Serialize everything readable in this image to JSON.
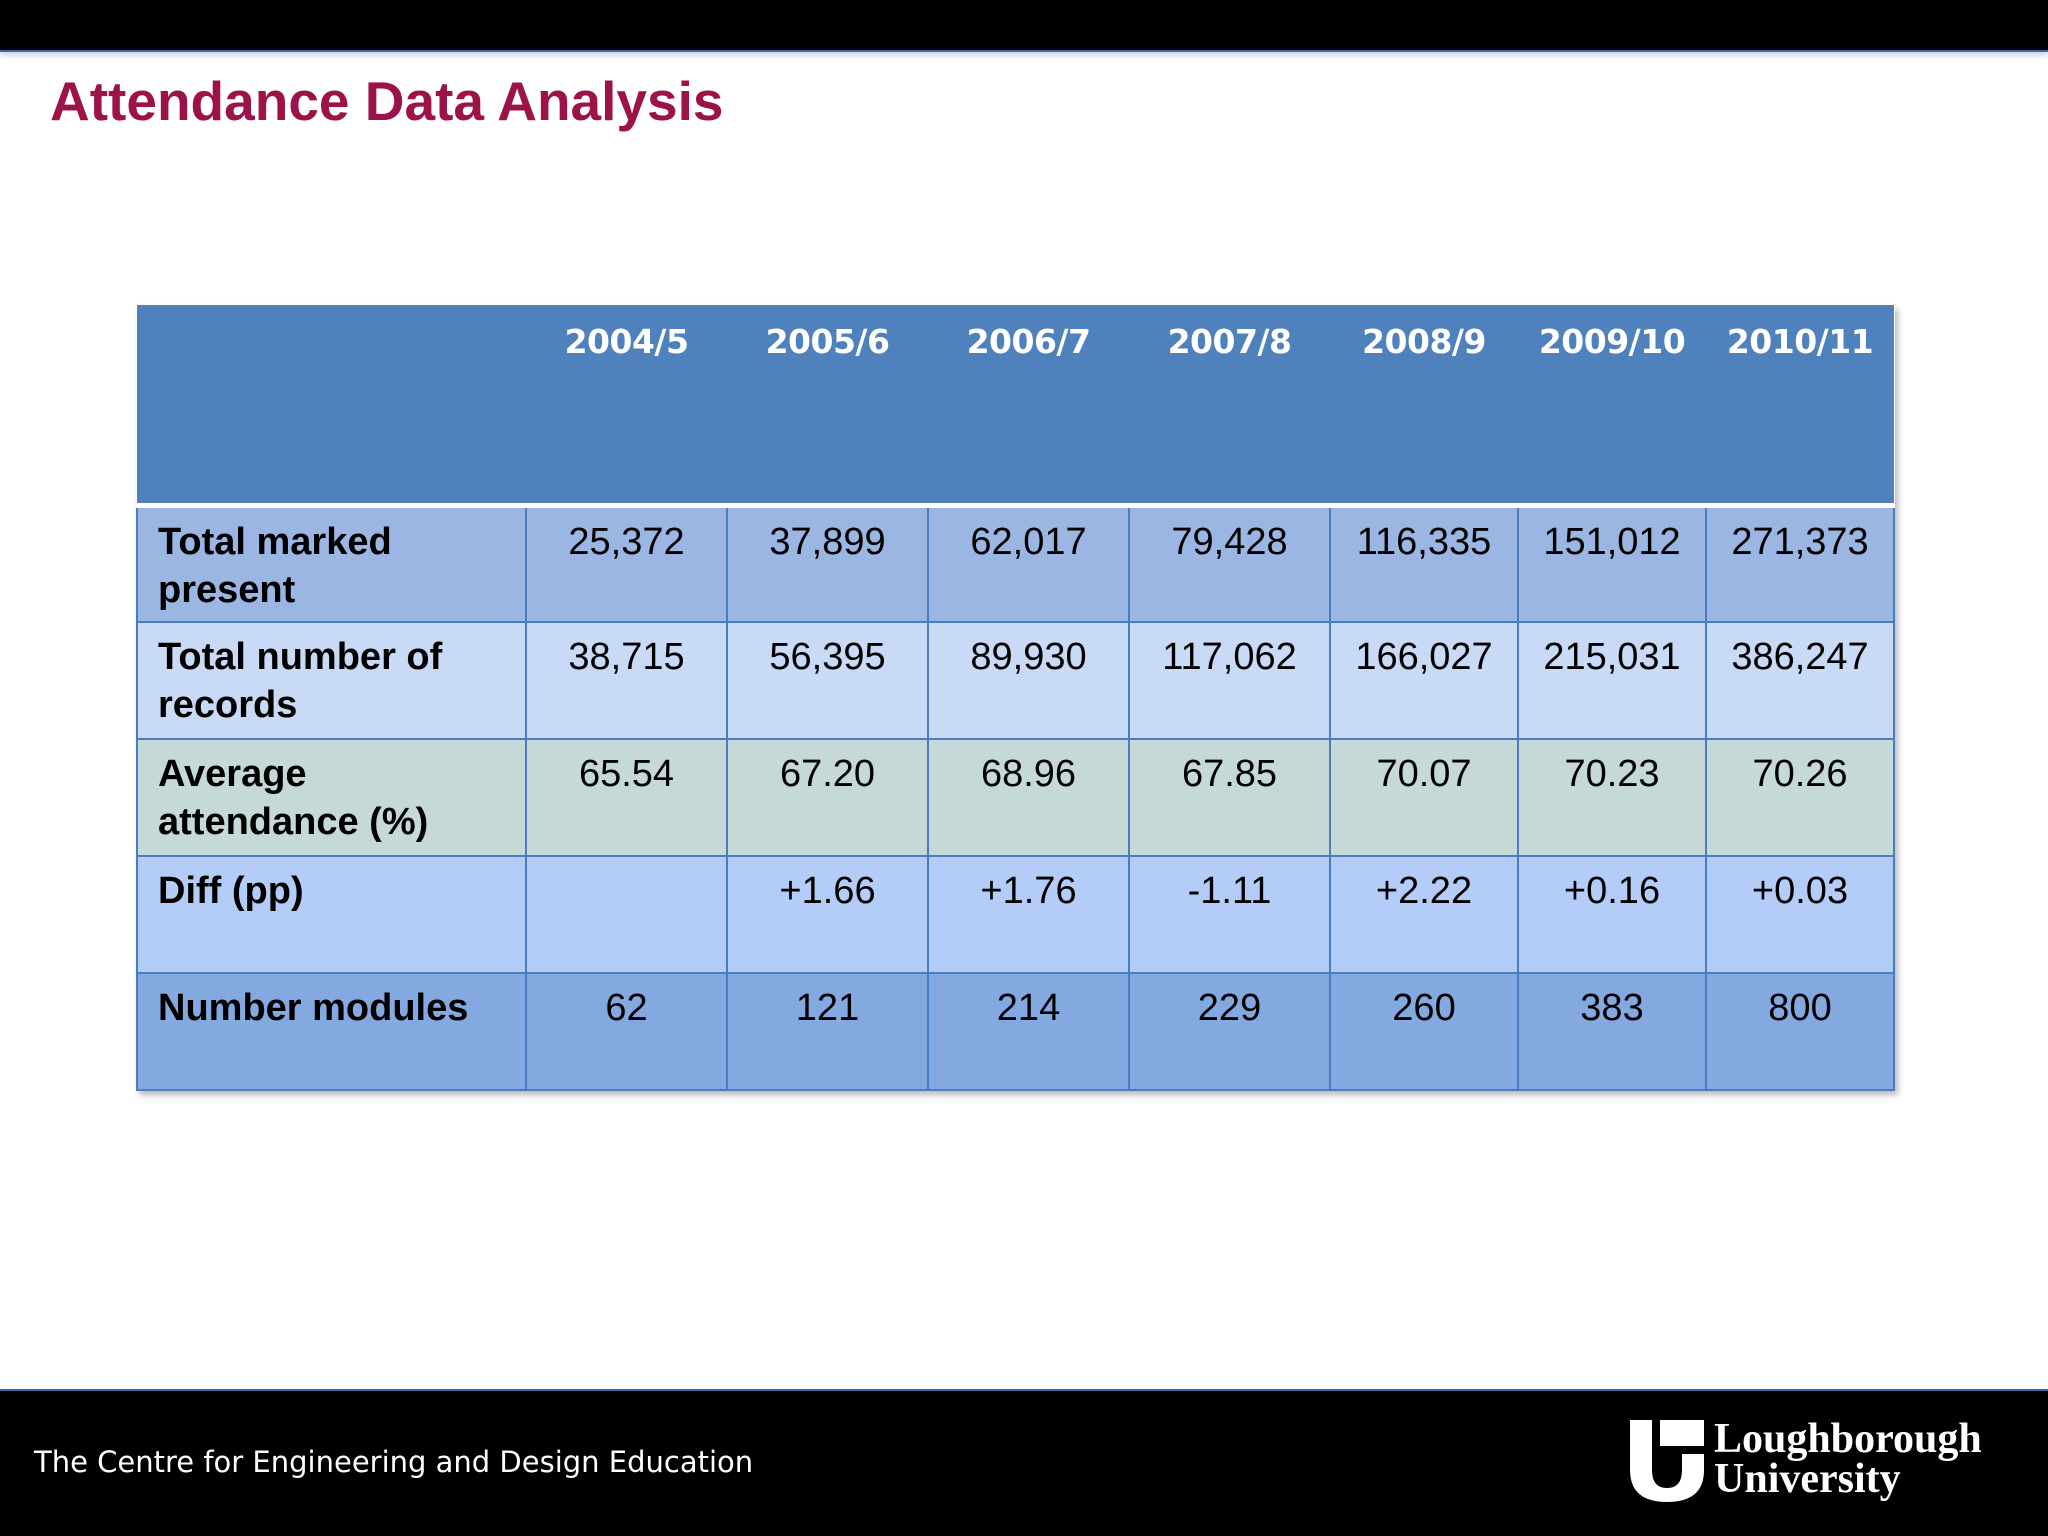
{
  "slide": {
    "title": "Attendance Data Analysis"
  },
  "table": {
    "headers": [
      "",
      "2004/5",
      "2005/6",
      "2006/7",
      "2007/8",
      "2008/9",
      "2009/10",
      "2010/11"
    ],
    "rows": [
      {
        "label": "Total marked present",
        "values": [
          "25,372",
          "37,899",
          "62,017",
          "79,428",
          "116,335",
          "151,012",
          "271,373"
        ]
      },
      {
        "label": "Total number of records",
        "values": [
          "38,715",
          "56,395",
          "89,930",
          "117,062",
          "166,027",
          "215,031",
          "386,247"
        ]
      },
      {
        "label": "Average attendance (%)",
        "values": [
          "65.54",
          "67.20",
          "68.96",
          "67.85",
          "70.07",
          "70.23",
          "70.26"
        ]
      },
      {
        "label": "Diff (pp)",
        "values": [
          "",
          "+1.66",
          "+1.76",
          "-1.11",
          "+2.22",
          "+0.16",
          "+0.03"
        ]
      },
      {
        "label": "Number modules",
        "values": [
          "62",
          "121",
          "214",
          "229",
          "260",
          "383",
          "800"
        ]
      }
    ]
  },
  "footer": {
    "text": "The Centre for Engineering and Design Education",
    "logo_line1": "Loughborough",
    "logo_line2": "University"
  },
  "colors": {
    "title": "#9b1349",
    "header_bg": "#4f81bd",
    "bar_bg": "#000000"
  }
}
